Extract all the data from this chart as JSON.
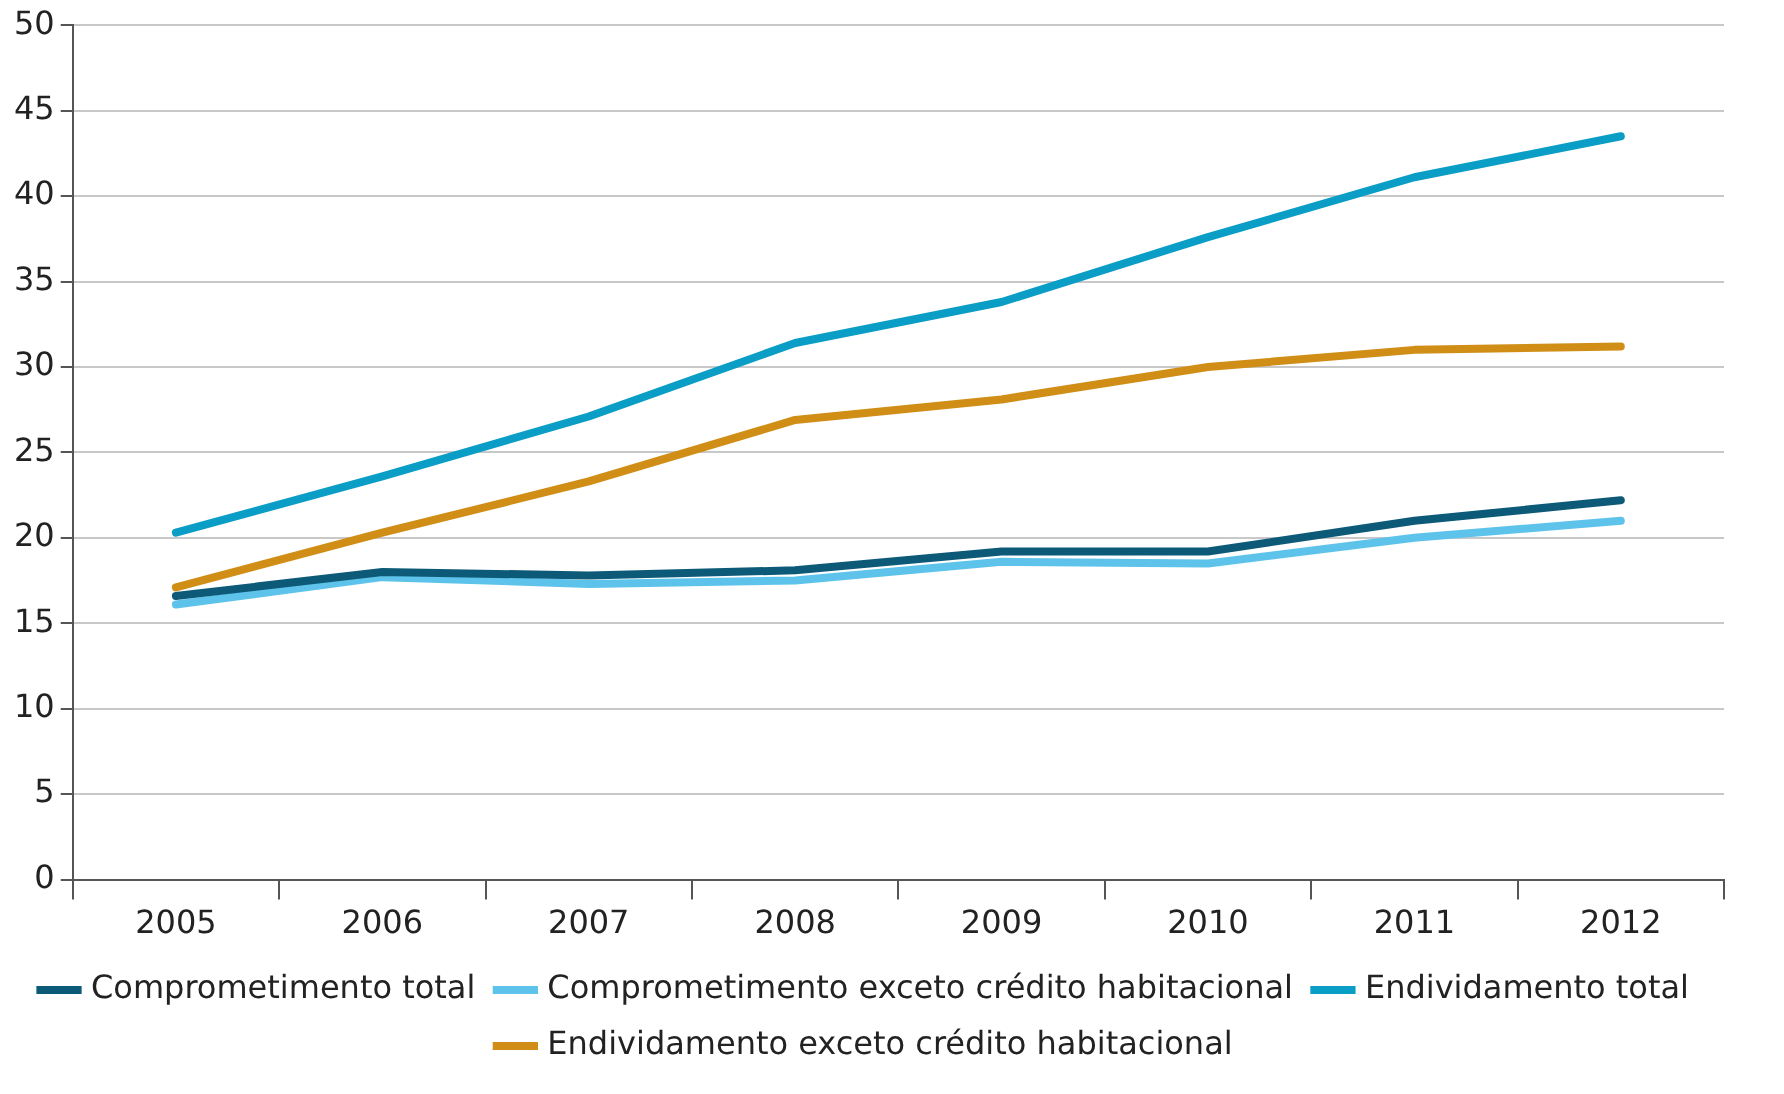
{
  "chart_data": {
    "type": "line",
    "categories": [
      "2005",
      "2006",
      "2007",
      "2008",
      "2009",
      "2010",
      "2011",
      "2012"
    ],
    "series": [
      {
        "name": "Comprometimento total",
        "color": "#0d5a78",
        "values": [
          16.6,
          18.0,
          17.8,
          18.1,
          19.2,
          19.2,
          21.0,
          22.2
        ]
      },
      {
        "name": "Comprometimento exceto crédito habitacional",
        "color": "#5ec3ea",
        "values": [
          16.1,
          17.7,
          17.3,
          17.5,
          18.6,
          18.5,
          20.0,
          21.0
        ]
      },
      {
        "name": "Endividamento total",
        "color": "#0a9dc6",
        "values": [
          20.3,
          23.6,
          27.1,
          31.4,
          33.8,
          37.6,
          41.1,
          43.5
        ]
      },
      {
        "name": "Endividamento exceto crédito habitacional",
        "color": "#d08e16",
        "values": [
          17.1,
          20.3,
          23.3,
          26.9,
          28.1,
          30.0,
          31.0,
          31.2
        ]
      }
    ],
    "ylim": [
      0,
      50
    ],
    "yticks": [
      0,
      5,
      10,
      15,
      20,
      25,
      30,
      35,
      40,
      45,
      50
    ],
    "grid": "y",
    "legend": "bottom",
    "marker": "none",
    "line_style": "solid"
  }
}
